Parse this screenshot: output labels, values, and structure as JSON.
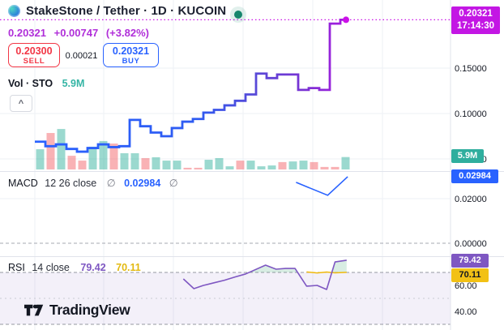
{
  "header": {
    "title": "StakeStone / Tether · 1D · KUCOIN",
    "last_price": "0.20321",
    "change": "+0.00747",
    "change_pct": "(+3.82%)",
    "sell_price": "0.20300",
    "sell_label": "SELL",
    "spread": "0.00021",
    "buy_price": "0.20321",
    "buy_label": "BUY",
    "vol_label": "Vol · STO",
    "vol_value": "5.9M",
    "collapse_glyph": "^"
  },
  "macd_legend": {
    "name": "MACD",
    "params": "12 26 close",
    "empty1": "∅",
    "value": "0.02984",
    "empty2": "∅"
  },
  "rsi_legend": {
    "name": "RSI",
    "params": "14 close",
    "value": "79.42",
    "ma_value": "70.11"
  },
  "price_scale": {
    "last_badge": {
      "price": "0.20321",
      "countdown": "17:14:30"
    },
    "vol_badge": "5.9M",
    "macd_badge": "0.02984",
    "rsi_badge": "79.42",
    "rsi_ma_badge": "70.11",
    "price_ticks": [
      {
        "label": "0.15000",
        "value": 0.15
      },
      {
        "label": "0.10000",
        "value": 0.1
      },
      {
        "label": "0.05000",
        "value": 0.05
      }
    ],
    "macd_ticks": [
      {
        "label": "0.02000",
        "value": 0.02
      },
      {
        "label": "0.00000",
        "value": 0.0
      }
    ],
    "rsi_ticks": [
      {
        "label": "60.00",
        "value": 60
      },
      {
        "label": "40.00",
        "value": 40
      }
    ]
  },
  "footer": {
    "brand": "TradingView"
  },
  "colors": {
    "magenta_badge": "#c316e4",
    "magenta_line": "#cb11e8",
    "blue": "#2962ff",
    "red": "#f23645",
    "teal_badge": "#2fae9e",
    "purple": "#7e57c2",
    "yellow_badge": "#f2c115",
    "vol_up": "rgba(34,171,148,0.45)",
    "vol_down": "rgba(242,84,91,0.45)",
    "overbought_fill": "rgba(76,175,129,0.22)",
    "band_fill": "rgba(126,87,194,0.09)",
    "grid": "#eef0f6",
    "separator": "#e0e3eb",
    "dash_strong": "#9598a1",
    "dash_light": "#c9cbd4",
    "scale_text": "#131722"
  },
  "chart_data": {
    "type": "line",
    "title": "StakeStone / Tether · 1D · KUCOIN",
    "symbol": "STO/USDT",
    "interval": "1D",
    "exchange": "KUCOIN",
    "legend_note": "step line of daily closes, volume columns, MACD pane, RSI pane",
    "price_steps": [
      0.069,
      0.064,
      0.066,
      0.061,
      0.058,
      0.062,
      0.066,
      0.063,
      0.064,
      0.093,
      0.086,
      0.079,
      0.075,
      0.084,
      0.091,
      0.094,
      0.101,
      0.104,
      0.109,
      0.114,
      0.121,
      0.144,
      0.139,
      0.143,
      0.143,
      0.126,
      0.128,
      0.126,
      0.199,
      0.20321
    ],
    "current_price": 0.20321,
    "countdown": "17:14:30",
    "price_axis_ticks": [
      0.15,
      0.1,
      0.05
    ],
    "ylim_price": [
      0.045,
      0.215
    ],
    "volume_millions": [
      9.6,
      17.3,
      19.2,
      6.5,
      4.2,
      10.8,
      13.5,
      12.3,
      7.7,
      7.7,
      5.4,
      5.8,
      4.2,
      4.2,
      0.8,
      0.8,
      4.6,
      5.4,
      1.5,
      4.2,
      4.2,
      1.5,
      1.9,
      3.5,
      3.8,
      4.2,
      3.5,
      1.2,
      1.2,
      5.9
    ],
    "volume_direction": [
      "up",
      "down",
      "up",
      "down",
      "down",
      "up",
      "up",
      "down",
      "up",
      "up",
      "down",
      "up",
      "up",
      "up",
      "down",
      "down",
      "up",
      "up",
      "up",
      "down",
      "up",
      "up",
      "up",
      "down",
      "up",
      "up",
      "down",
      "down",
      "down",
      "up"
    ],
    "current_volume": "5.9M",
    "macd": {
      "settings": "12 26 close",
      "points": [
        {
          "bar": 24.8,
          "value": 0.0273
        },
        {
          "bar": 27.8,
          "value": 0.0215
        },
        {
          "bar": 29.7,
          "value": 0.02984
        }
      ],
      "last": 0.02984,
      "axis_ticks": [
        0.02,
        0.0
      ],
      "zero_line": 0.0
    },
    "rsi": {
      "settings": "14 close",
      "bars": [
        14.1,
        15.1,
        16,
        17,
        18,
        19,
        20,
        21.9,
        22.9,
        23.8,
        24.7,
        25.8,
        26.8,
        27.7,
        28.5,
        29.6
      ],
      "values": [
        65,
        57.5,
        60,
        62,
        64,
        66.5,
        68.8,
        75.6,
        72.5,
        73.1,
        73.1,
        59.4,
        60,
        56.9,
        78.1,
        79.42
      ],
      "ma_bars": [
        25.8,
        26.8,
        27.7,
        28.5,
        29.6
      ],
      "ma_values": [
        70.4,
        69.6,
        70.3,
        69.7,
        70.11
      ],
      "last": 79.42,
      "ma_last": 70.11,
      "levels": [
        70,
        50,
        30
      ],
      "axis_ticks": [
        60,
        40
      ]
    }
  }
}
